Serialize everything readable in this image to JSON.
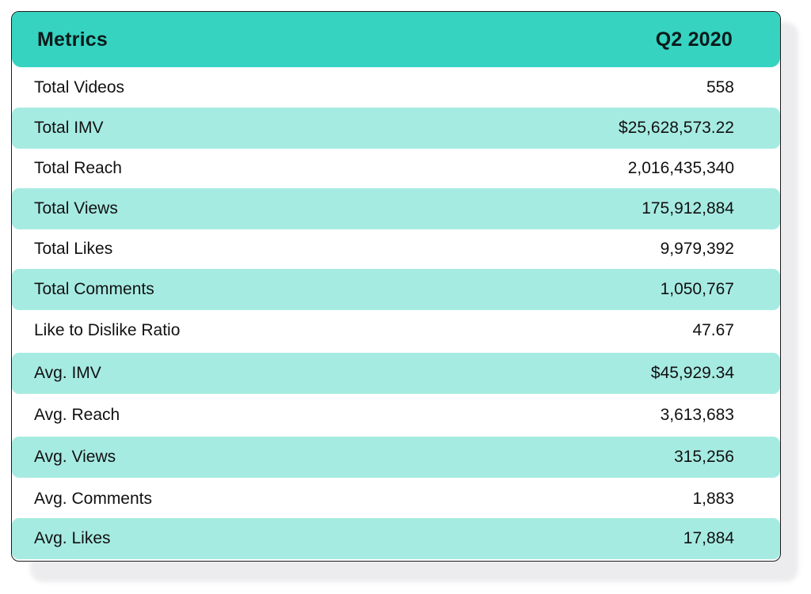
{
  "header": {
    "metric_label": "Metrics",
    "period_label": "Q2 2020",
    "accent_color": "#36d3c1",
    "row_highlight_color": "#a6ebe2"
  },
  "rows": [
    {
      "label": "Total Videos",
      "value": "558"
    },
    {
      "label": "Total IMV",
      "value": "$25,628,573.22"
    },
    {
      "label": "Total Reach",
      "value": "2,016,435,340"
    },
    {
      "label": "Total Views",
      "value": "175,912,884"
    },
    {
      "label": "Total Likes",
      "value": "9,979,392"
    },
    {
      "label": "Total Comments",
      "value": "1,050,767"
    },
    {
      "label": "Like to Dislike Ratio",
      "value": "47.67"
    },
    {
      "label": "Avg. IMV",
      "value": "$45,929.34"
    },
    {
      "label": "Avg. Reach",
      "value": "3,613,683"
    },
    {
      "label": "Avg. Views",
      "value": "315,256"
    },
    {
      "label": "Avg. Comments",
      "value": "1,883"
    },
    {
      "label": "Avg. Likes",
      "value": "17,884"
    }
  ]
}
